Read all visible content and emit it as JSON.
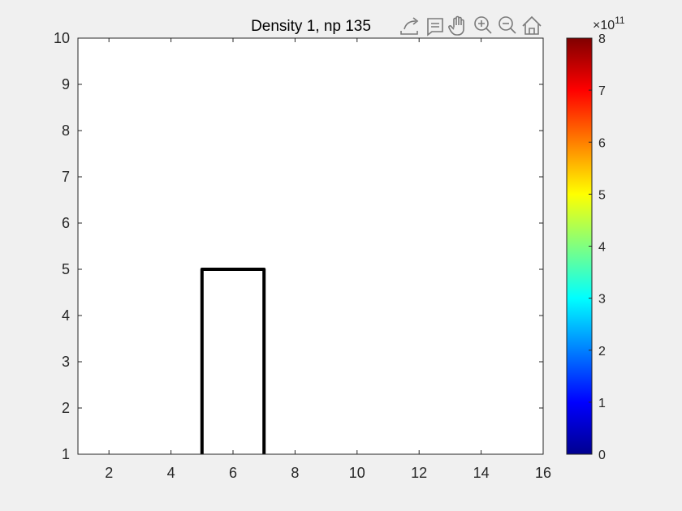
{
  "figure": {
    "background": "#f0f0f0"
  },
  "toolbar": {
    "icons": [
      "export-icon",
      "data-tips-icon",
      "pan-hand-icon",
      "zoom-in-icon",
      "zoom-out-icon",
      "home-icon"
    ],
    "color": "#7a7a7a"
  },
  "chart_data": {
    "type": "line",
    "title": "Density 1, np 135",
    "xlabel": "",
    "ylabel": "",
    "xlim": [
      1,
      16
    ],
    "ylim": [
      1,
      10
    ],
    "xticks": [
      2,
      4,
      6,
      8,
      10,
      12,
      14,
      16
    ],
    "yticks": [
      1,
      2,
      3,
      4,
      5,
      6,
      7,
      8,
      9,
      10
    ],
    "grid": false,
    "series": [
      {
        "x": [
          5,
          5,
          7,
          7
        ],
        "y": [
          1,
          5,
          5,
          1
        ],
        "color": "#000000"
      }
    ],
    "colorbar": {
      "colormap": "jet",
      "clim": [
        0,
        8
      ],
      "ticks": [
        0,
        1,
        2,
        3,
        4,
        5,
        6,
        7,
        8
      ],
      "exponent_label": "×10",
      "exponent": "11",
      "position": "right"
    }
  }
}
